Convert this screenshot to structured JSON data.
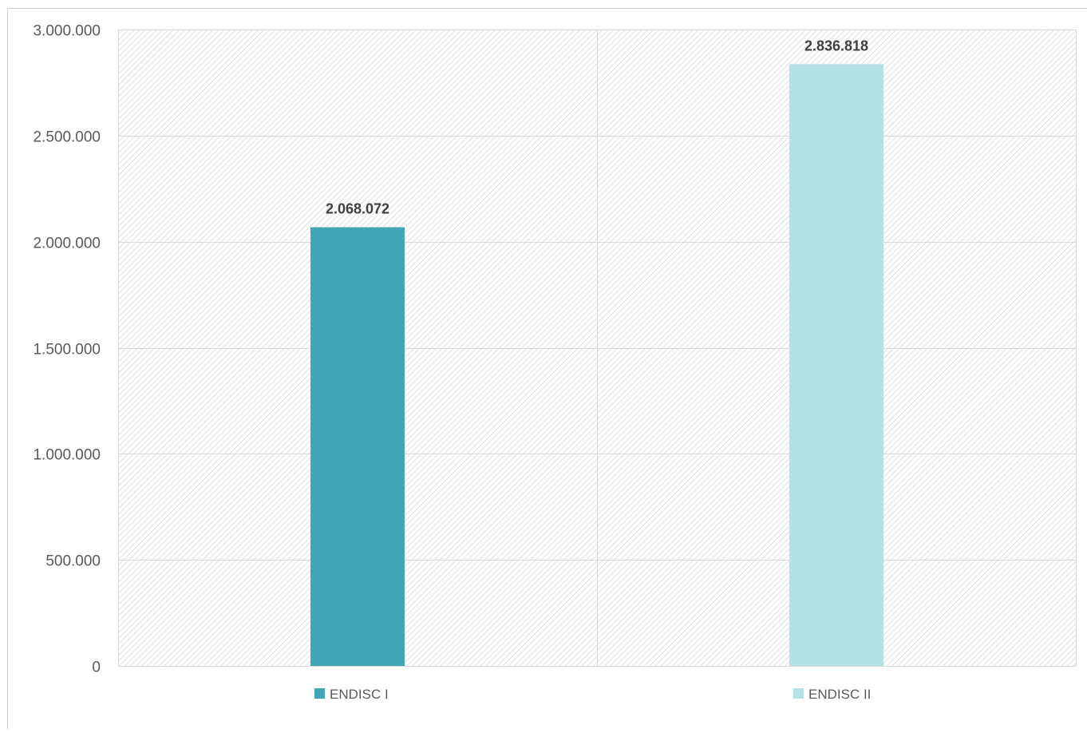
{
  "chart_data": {
    "type": "bar",
    "title": "",
    "xlabel": "",
    "ylabel": "",
    "categories": [
      "ENDISC I",
      "ENDISC II"
    ],
    "values": [
      2068072,
      2836818
    ],
    "data_labels": [
      "2.068.072",
      "2.836.818"
    ],
    "ylim": [
      0,
      3000000
    ],
    "yticks": [
      0,
      500000,
      1000000,
      1500000,
      2000000,
      2500000,
      3000000
    ],
    "ytick_labels": [
      "0",
      "500.000",
      "1.000.000",
      "1.500.000",
      "2.000.000",
      "2.500.000",
      "3.000.000"
    ],
    "grid": true,
    "legend_position": "bottom",
    "colors": [
      "#41a7b6",
      "#b4e2e7"
    ],
    "legend": [
      {
        "label": "ENDISC I",
        "color": "#41a7b6"
      },
      {
        "label": "ENDISC II",
        "color": "#b4e2e7"
      }
    ]
  }
}
